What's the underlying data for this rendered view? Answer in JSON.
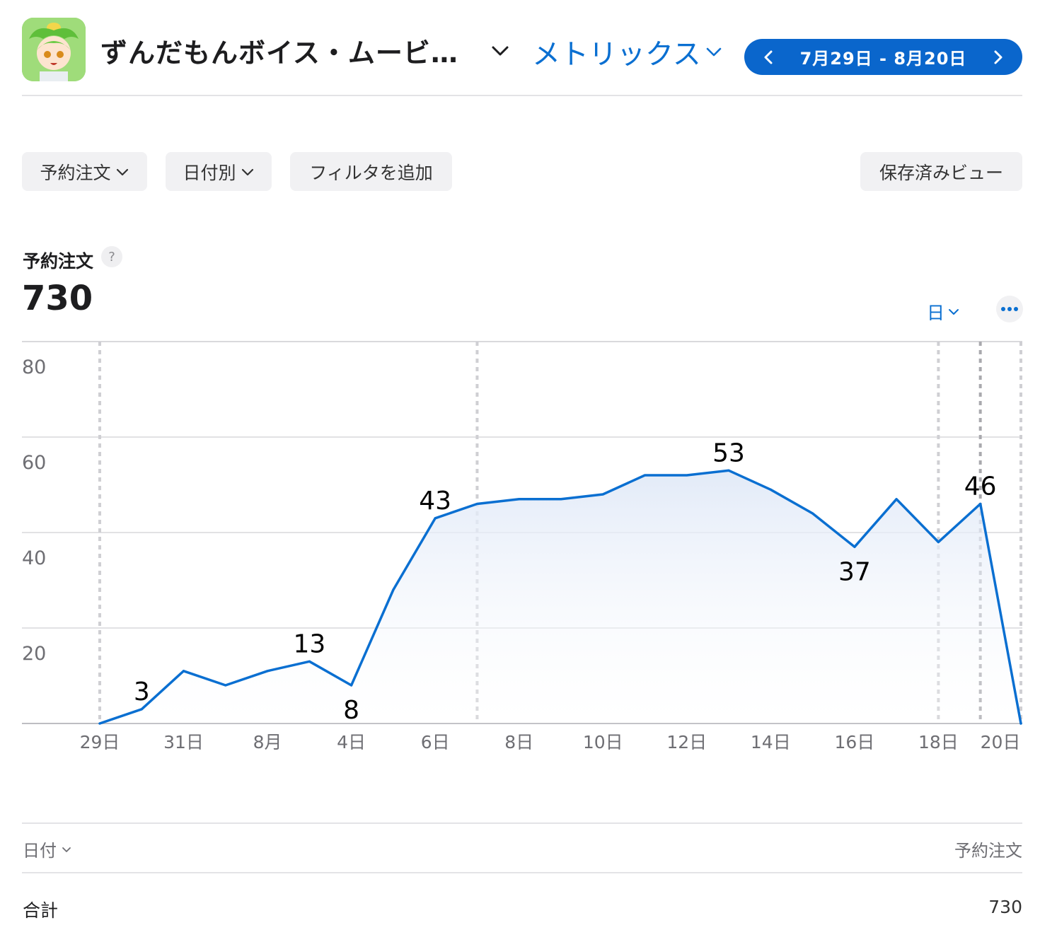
{
  "header": {
    "app_name": "ずんだもんボイス・ムービ…",
    "metrics_label": "メトリックス",
    "date_range": "7月29日 - 8月20日",
    "colors": {
      "accent": "#0a66cc",
      "link": "#0a6fd1"
    }
  },
  "filters": {
    "measure": "予約注文",
    "breakdown": "日付別",
    "add_filter": "フィルタを追加",
    "saved_views": "保存済みビュー"
  },
  "summary": {
    "metric": "予約注文",
    "help": "?",
    "total": "730",
    "granularity": "日"
  },
  "chart_data": {
    "type": "area",
    "title": "",
    "xlabel": "",
    "ylabel": "",
    "ylim": [
      0,
      80
    ],
    "yticks": [
      "20",
      "40",
      "60",
      "80"
    ],
    "xtick_labels": [
      "29日",
      "31日",
      "8月",
      "4日",
      "6日",
      "8日",
      "10日",
      "12日",
      "14日",
      "16日",
      "18日",
      "20日"
    ],
    "x": [
      "7/29",
      "7/30",
      "7/31",
      "8/1",
      "8/2",
      "8/3",
      "8/4",
      "8/5",
      "8/6",
      "8/7",
      "8/8",
      "8/9",
      "8/10",
      "8/11",
      "8/12",
      "8/13",
      "8/14",
      "8/15",
      "8/16",
      "8/17",
      "8/18",
      "8/19",
      "8/20"
    ],
    "series": [
      {
        "values": [
          0,
          3,
          11,
          8,
          11,
          13,
          8,
          28,
          43,
          46,
          47,
          47,
          48,
          52,
          52,
          53,
          49,
          44,
          37,
          47,
          38,
          46,
          0
        ]
      }
    ],
    "data_labels": [
      {
        "index": 1,
        "text": "3"
      },
      {
        "index": 5,
        "text": "13"
      },
      {
        "index": 6,
        "text": "8"
      },
      {
        "index": 8,
        "text": "43"
      },
      {
        "index": 15,
        "text": "53"
      },
      {
        "index": 18,
        "text": "37"
      },
      {
        "index": 21,
        "text": "46"
      }
    ],
    "grid": true,
    "color": "#0a6fd1"
  },
  "table": {
    "col_date": "日付",
    "col_orders": "予約注文",
    "total_label": "合計",
    "total_value": "730"
  }
}
